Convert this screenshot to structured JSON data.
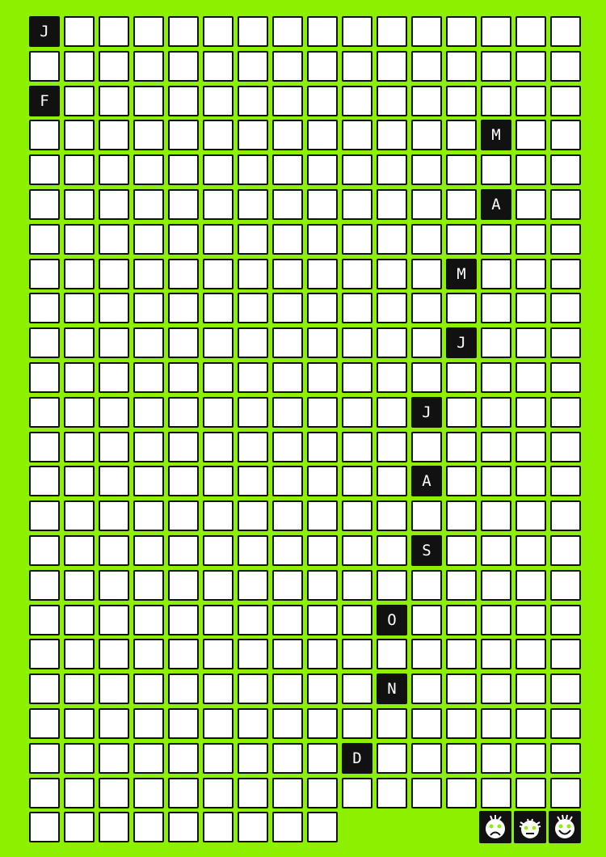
{
  "calendar": {
    "columns": 16,
    "total_cells": 377,
    "colors": {
      "background": "#8cf000",
      "day_cell": "#ffffff",
      "month_cell": "#111111",
      "eye": "#8cf000"
    },
    "months": [
      {
        "letter": "J",
        "row": 0,
        "col": 0
      },
      {
        "letter": "F",
        "row": 2,
        "col": 0
      },
      {
        "letter": "M",
        "row": 3,
        "col": 13
      },
      {
        "letter": "A",
        "row": 5,
        "col": 13
      },
      {
        "letter": "M",
        "row": 7,
        "col": 12
      },
      {
        "letter": "J",
        "row": 9,
        "col": 12
      },
      {
        "letter": "J",
        "row": 11,
        "col": 11
      },
      {
        "letter": "A",
        "row": 13,
        "col": 11
      },
      {
        "letter": "S",
        "row": 15,
        "col": 11
      },
      {
        "letter": "O",
        "row": 17,
        "col": 10
      },
      {
        "letter": "N",
        "row": 19,
        "col": 10
      },
      {
        "letter": "D",
        "row": 21,
        "col": 9
      }
    ]
  },
  "mood_legend": [
    {
      "icon": "sad-face-icon",
      "mood": "sad"
    },
    {
      "icon": "neutral-face-icon",
      "mood": "neutral"
    },
    {
      "icon": "happy-face-icon",
      "mood": "happy"
    }
  ]
}
